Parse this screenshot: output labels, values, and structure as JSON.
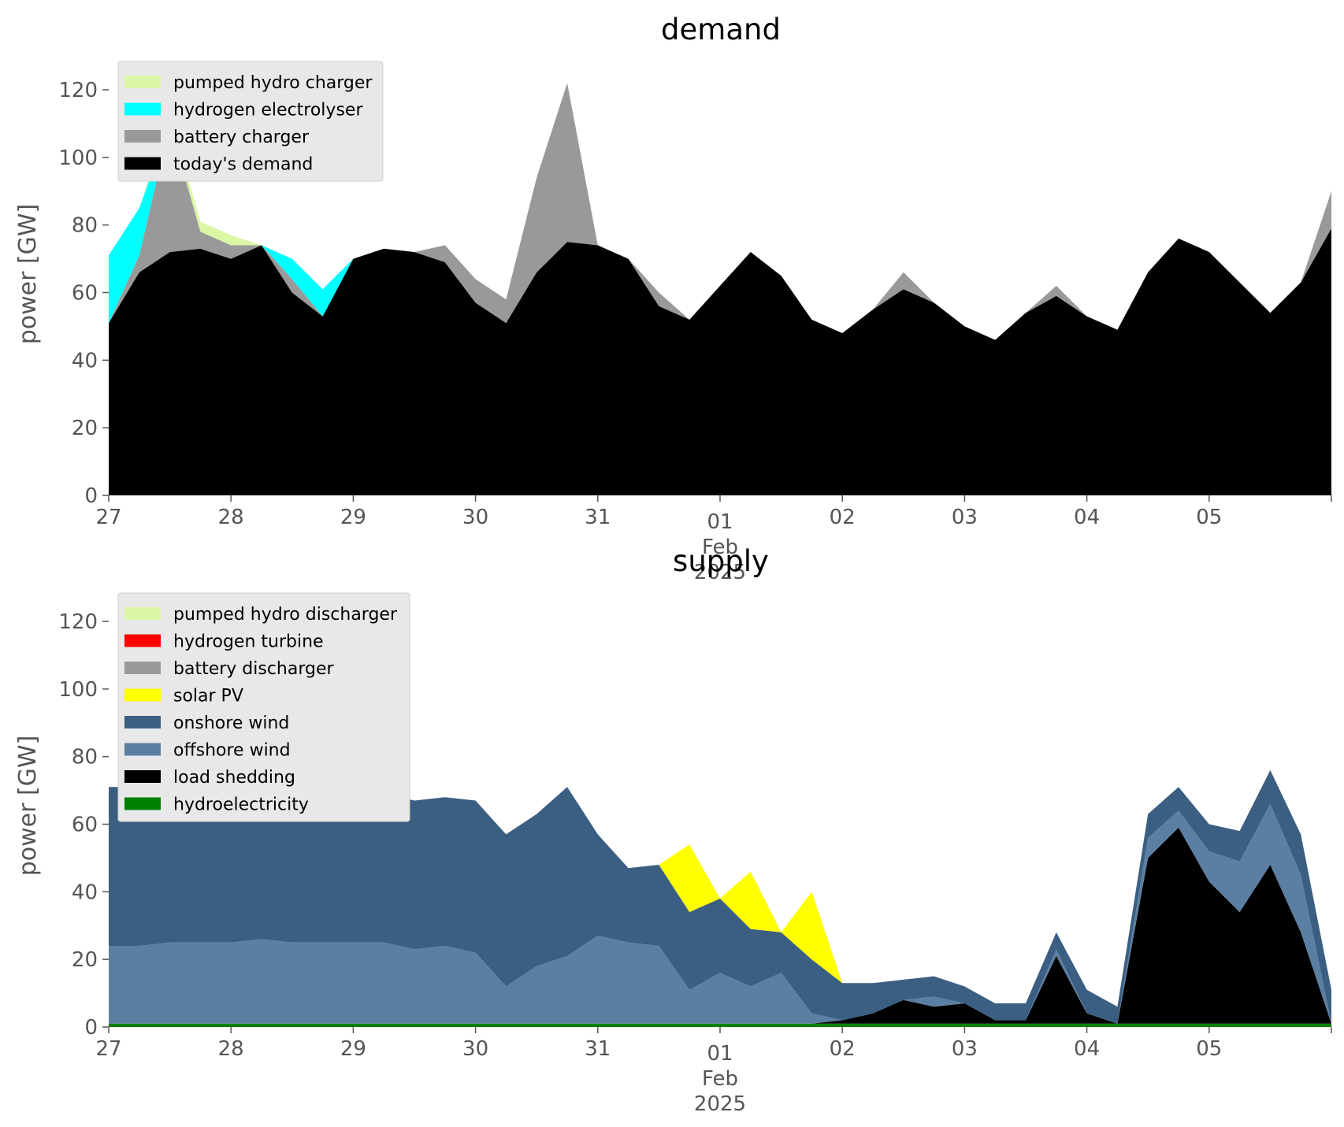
{
  "chart_data": [
    {
      "type": "area",
      "stacked": true,
      "title": "demand",
      "ylabel": "power [GW]",
      "xlabel": "",
      "ylim": [
        0,
        127
      ],
      "yticks": [
        0,
        20,
        40,
        60,
        80,
        100,
        120
      ],
      "date_ticks": [
        "27",
        "28",
        "29",
        "30",
        "31",
        "01",
        "02",
        "03",
        "04",
        "05"
      ],
      "date_sublabel": [
        "Feb",
        "2025"
      ],
      "grid": false,
      "legend_position": "top-left",
      "legend": [
        "pumped hydro charger",
        "hydrogen electrolyser",
        "battery charger",
        "today's demand"
      ],
      "x": [
        0,
        0.25,
        0.5,
        0.75,
        1,
        1.25,
        1.5,
        1.75,
        2,
        2.25,
        2.5,
        2.75,
        3,
        3.25,
        3.5,
        3.75,
        4,
        4.25,
        4.5,
        4.75,
        5,
        5.25,
        5.5,
        5.75,
        6,
        6.25,
        6.5,
        6.75,
        7,
        7.25,
        7.5,
        7.75,
        8,
        8.25,
        8.5,
        8.75,
        9,
        9.25,
        9.5,
        9.75,
        10
      ],
      "x_unit": "days since 27 Jan 2025",
      "series": [
        {
          "name": "today's demand",
          "color": "#000000",
          "values": [
            51,
            66,
            72,
            73,
            70,
            74,
            60,
            53,
            70,
            73,
            72,
            69,
            57,
            51,
            66,
            75,
            74,
            70,
            56,
            52,
            62,
            72,
            65,
            52,
            48,
            55,
            61,
            57,
            50,
            46,
            54,
            59,
            53,
            49,
            66,
            76,
            72,
            63,
            54,
            63,
            79
          ]
        },
        {
          "name": "battery charger",
          "color": "#999999",
          "values": [
            0,
            5,
            38,
            5,
            4,
            0,
            4,
            0,
            0,
            0,
            0,
            5,
            7,
            7,
            28,
            47,
            0,
            0,
            4,
            0,
            0,
            0,
            0,
            0,
            0,
            0,
            5,
            0,
            0,
            0,
            0,
            3,
            0,
            0,
            0,
            0,
            0,
            0,
            0,
            0,
            11
          ]
        },
        {
          "name": "hydrogen electrolyser",
          "color": "#00ffff",
          "values": [
            20,
            14,
            0,
            0,
            0,
            0,
            6,
            8,
            0,
            0,
            0,
            0,
            0,
            0,
            0,
            0,
            0,
            0,
            0,
            0,
            0,
            0,
            0,
            0,
            0,
            0,
            0,
            0,
            0,
            0,
            0,
            0,
            0,
            0,
            0,
            0,
            0,
            0,
            0,
            0,
            0
          ]
        },
        {
          "name": "pumped hydro charger",
          "color": "#daf7a6",
          "values": [
            0,
            0,
            3,
            3,
            3,
            0,
            0,
            0,
            0,
            0,
            0,
            0,
            0,
            0,
            0,
            0,
            0,
            0,
            0,
            0,
            0,
            0,
            0,
            0,
            0,
            0,
            0,
            0,
            0,
            0,
            0,
            0,
            0,
            0,
            0,
            0,
            0,
            0,
            0,
            0,
            0
          ]
        }
      ]
    },
    {
      "type": "area",
      "stacked": true,
      "title": "supply",
      "ylabel": "power [GW]",
      "xlabel": "",
      "ylim": [
        0,
        127
      ],
      "yticks": [
        0,
        20,
        40,
        60,
        80,
        100,
        120
      ],
      "date_ticks": [
        "27",
        "28",
        "29",
        "30",
        "31",
        "01",
        "02",
        "03",
        "04",
        "05"
      ],
      "date_sublabel": [
        "Feb",
        "2025"
      ],
      "grid": false,
      "legend_position": "top-left",
      "legend": [
        "pumped hydro discharger",
        "hydrogen turbine",
        "battery discharger",
        "solar PV",
        "onshore wind",
        "offshore wind",
        "load shedding",
        "hydroelectricity"
      ],
      "x": [
        0,
        0.25,
        0.5,
        0.75,
        1,
        1.25,
        1.5,
        1.75,
        2,
        2.25,
        2.5,
        2.75,
        3,
        3.25,
        3.5,
        3.75,
        4,
        4.25,
        4.5,
        4.75,
        5,
        5.25,
        5.5,
        5.75,
        6,
        6.25,
        6.5,
        6.75,
        7,
        7.25,
        7.5,
        7.75,
        8,
        8.25,
        8.5,
        8.75,
        9,
        9.25,
        9.5,
        9.75,
        10
      ],
      "x_unit": "days since 27 Jan 2025",
      "series": [
        {
          "name": "hydroelectricity",
          "color": "#008000",
          "values": [
            1,
            1,
            1,
            1,
            1,
            1,
            1,
            1,
            1,
            1,
            1,
            1,
            1,
            1,
            1,
            1,
            1,
            1,
            1,
            1,
            1,
            1,
            1,
            1,
            1,
            1,
            1,
            1,
            1,
            1,
            1,
            1,
            1,
            1,
            1,
            1,
            1,
            1,
            1,
            1,
            1
          ]
        },
        {
          "name": "load shedding",
          "color": "#000000",
          "values": [
            0,
            0,
            0,
            0,
            0,
            0,
            0,
            0,
            0,
            0,
            0,
            0,
            0,
            0,
            0,
            0,
            0,
            0,
            0,
            0,
            0,
            0,
            0,
            0,
            1,
            3,
            7,
            5,
            6,
            1,
            1,
            20,
            3,
            0,
            49,
            58,
            42,
            33,
            47,
            27,
            0
          ]
        },
        {
          "name": "offshore wind",
          "color": "#5b7fa3",
          "values": [
            23,
            23,
            24,
            24,
            24,
            25,
            24,
            24,
            24,
            24,
            22,
            23,
            21,
            11,
            17,
            20,
            26,
            24,
            23,
            10,
            15,
            11,
            15,
            3,
            0,
            0,
            0,
            3,
            0,
            0,
            0,
            2,
            0,
            0,
            6,
            5,
            9,
            15,
            18,
            17,
            0
          ]
        },
        {
          "name": "onshore wind",
          "color": "#3b5f82",
          "values": [
            47,
            47,
            45,
            45,
            43,
            44,
            44,
            43,
            43,
            44,
            44,
            44,
            45,
            45,
            45,
            50,
            30,
            22,
            24,
            23,
            22,
            17,
            12,
            16,
            11,
            9,
            6,
            6,
            5,
            5,
            5,
            5,
            7,
            5,
            7,
            7,
            8,
            9,
            10,
            12,
            10
          ]
        },
        {
          "name": "solar PV",
          "color": "#ffff00",
          "values": [
            0,
            0,
            0,
            0,
            0,
            0,
            0,
            0,
            0,
            0,
            0,
            0,
            0,
            0,
            0,
            0,
            0,
            0,
            0,
            20,
            0,
            17,
            0,
            20,
            0,
            0,
            0,
            0,
            0,
            0,
            0,
            0,
            0,
            0,
            0,
            0,
            0,
            0,
            0,
            0,
            0
          ]
        },
        {
          "name": "battery discharger",
          "color": "#999999",
          "values": [
            0,
            0,
            0,
            0,
            0,
            0,
            0,
            0,
            0,
            0,
            0,
            0,
            0,
            0,
            0,
            0,
            0,
            0,
            0,
            0,
            0,
            0,
            0,
            0,
            0,
            0,
            0,
            0,
            0,
            0,
            0,
            0,
            0,
            0,
            0,
            0,
            0,
            0,
            0,
            0,
            0
          ]
        },
        {
          "name": "hydrogen turbine",
          "color": "#ff0000",
          "values": [
            0,
            0,
            0,
            0,
            0,
            0,
            0,
            0,
            0,
            0,
            0,
            0,
            0,
            0,
            0,
            0,
            0,
            0,
            0,
            0,
            0,
            0,
            0,
            0,
            0,
            0,
            0,
            0,
            0,
            0,
            0,
            0,
            0,
            0,
            0,
            0,
            0,
            0,
            0,
            0,
            0
          ]
        },
        {
          "name": "pumped hydro discharger",
          "color": "#daf7a6",
          "values": [
            0,
            0,
            0,
            0,
            0,
            0,
            0,
            0,
            0,
            0,
            0,
            0,
            0,
            0,
            0,
            0,
            0,
            0,
            0,
            0,
            0,
            0,
            0,
            0,
            0,
            0,
            0,
            0,
            0,
            0,
            0,
            0,
            0,
            0,
            0,
            0,
            0,
            0,
            0,
            0,
            0
          ]
        }
      ]
    }
  ]
}
